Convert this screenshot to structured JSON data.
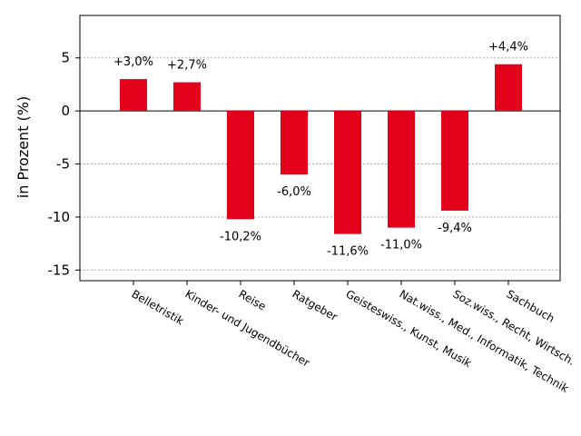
{
  "chart_data": {
    "type": "bar",
    "title": "",
    "xlabel": "",
    "ylabel": "in Prozent (%)",
    "ylim": [
      -16,
      9
    ],
    "yticks": [
      5,
      0,
      -5,
      -10,
      -15
    ],
    "ytick_labels": [
      "5",
      "0",
      "-5",
      "-10",
      "-15"
    ],
    "grid": "horizontal-dotted",
    "bar_color": "#e2001a",
    "categories": [
      "Belletristik",
      "Kinder- und Jugendbücher",
      "Reise",
      "Ratgeber",
      "Geisteswiss., Kunst, Musik",
      "Nat.wiss., Med., Informatik, Technik",
      "Soz.wiss., Recht, Wirtsch.",
      "Sachbuch"
    ],
    "values": [
      3.0,
      2.7,
      -10.2,
      -6.0,
      -11.6,
      -11.0,
      -9.4,
      4.4
    ],
    "data_labels": [
      "+3,0%",
      "+2,7%",
      "-10,2%",
      "-6,0%",
      "-11,6%",
      "-11,0%",
      "-9,4%",
      "+4,4%"
    ]
  }
}
